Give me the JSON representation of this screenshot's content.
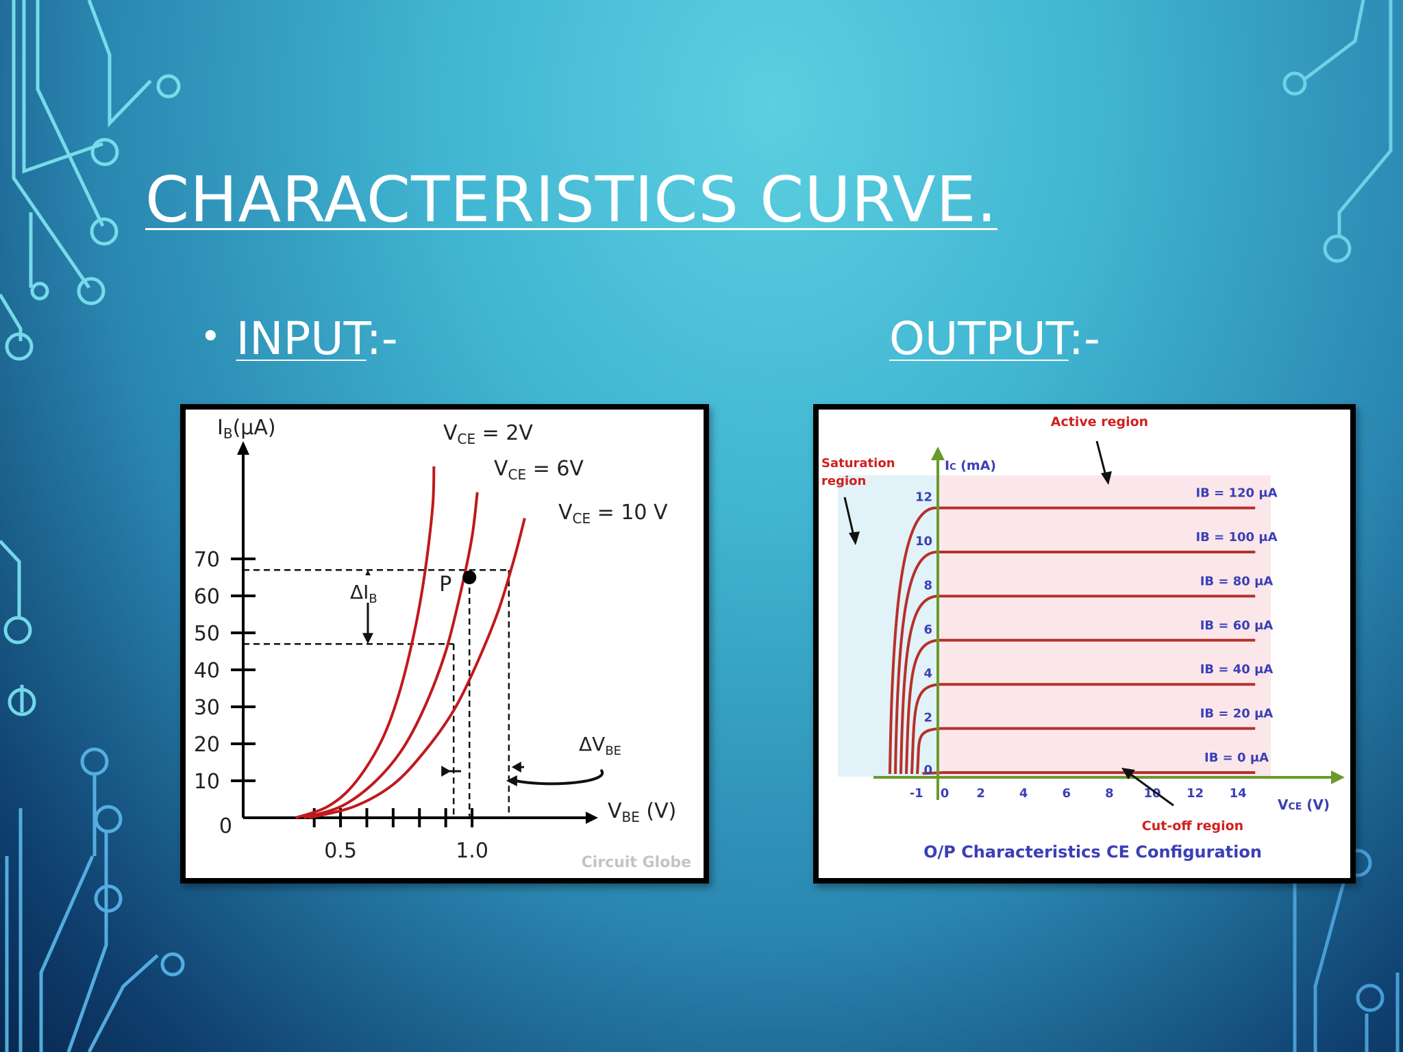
{
  "slide": {
    "title": "CHARACTERISTICS CURVE.",
    "input_heading": "INPUT",
    "output_heading": "OUTPUT",
    "heading_suffix": ":-",
    "bullet": "•"
  },
  "colors": {
    "curve": "#c0191d",
    "output_curve": "#b8302a",
    "output_axis": "#6a9a2e",
    "output_labels": "#3b3fb6",
    "region_labels": "#d0201f"
  },
  "chart_data": [
    {
      "type": "line",
      "ylabel": "IB(μA)",
      "xlabel": "VBE (V)",
      "xlim": [
        0.05,
        1.25
      ],
      "ylim": [
        0,
        80
      ],
      "x_ticks": [
        {
          "value": 0.5,
          "label": "0.5"
        },
        {
          "value": 1.0,
          "label": "1.0"
        }
      ],
      "y_ticks": [
        {
          "value": 10,
          "label": "10"
        },
        {
          "value": 20,
          "label": "20"
        },
        {
          "value": 30,
          "label": "30"
        },
        {
          "value": 40,
          "label": "40"
        },
        {
          "value": 50,
          "label": "50"
        },
        {
          "value": 60,
          "label": "60"
        },
        {
          "value": 70,
          "label": "70"
        }
      ],
      "origin_label": "0",
      "series": [
        {
          "name": "VCE = 2V",
          "x": [
            0.33,
            0.45,
            0.55,
            0.65,
            0.72,
            0.78,
            0.82,
            0.85,
            0.855
          ],
          "y": [
            0,
            3,
            9,
            20,
            33,
            50,
            66,
            84,
            95
          ]
        },
        {
          "name": "VCE = 6V",
          "x": [
            0.36,
            0.5,
            0.62,
            0.73,
            0.82,
            0.9,
            0.96,
            1.0,
            1.02
          ],
          "y": [
            0,
            3,
            9,
            18,
            30,
            45,
            62,
            76,
            88
          ]
        },
        {
          "name": "VCE = 10 V",
          "x": [
            0.38,
            0.55,
            0.7,
            0.82,
            0.93,
            1.02,
            1.1,
            1.16,
            1.2
          ],
          "y": [
            0,
            3,
            9,
            18,
            29,
            42,
            56,
            70,
            81
          ]
        }
      ],
      "series_labels": [
        {
          "sub": "CE",
          "rest": " = 2V"
        },
        {
          "sub": "CE",
          "rest": " = 6V"
        },
        {
          "sub": "CE",
          "rest": " = 10 V"
        }
      ],
      "annotations": {
        "point_label": "P",
        "point": {
          "x": 0.99,
          "y": 65
        },
        "delta_ib": "ΔIB",
        "delta_ib_range": [
          47,
          67
        ],
        "delta_vbe": "ΔVBE",
        "delta_vbe_range": [
          0.93,
          1.14
        ],
        "watermark": "Circuit Globe"
      },
      "grid": false
    },
    {
      "type": "line",
      "title": "O/P Characteristics CE Configuration",
      "ylabel": "IC (mA)",
      "xlabel": "VCE (V)",
      "xlim": [
        -1.5,
        15.5
      ],
      "ylim": [
        -0.3,
        14
      ],
      "x_ticks": [
        {
          "value": -1,
          "label": "-1"
        },
        {
          "value": 0,
          "label": "0"
        },
        {
          "value": 2,
          "label": "2"
        },
        {
          "value": 4,
          "label": "4"
        },
        {
          "value": 6,
          "label": "6"
        },
        {
          "value": 8,
          "label": "8"
        },
        {
          "value": 10,
          "label": "10"
        },
        {
          "value": 12,
          "label": "12"
        },
        {
          "value": 14,
          "label": "14"
        }
      ],
      "y_ticks": [
        {
          "value": 0,
          "label": "0"
        },
        {
          "value": 2,
          "label": "2"
        },
        {
          "value": 4,
          "label": "4"
        },
        {
          "value": 6,
          "label": "6"
        },
        {
          "value": 8,
          "label": "8"
        },
        {
          "value": 10,
          "label": "10"
        },
        {
          "value": 12,
          "label": "12"
        }
      ],
      "series": [
        {
          "name": "IB = 120 μA",
          "plateau": 12
        },
        {
          "name": "IB = 100 μA",
          "plateau": 10
        },
        {
          "name": "IB = 80 μA",
          "plateau": 8
        },
        {
          "name": "IB = 60 μA",
          "plateau": 6
        },
        {
          "name": "IB = 40 μA",
          "plateau": 4
        },
        {
          "name": "IB = 20 μA",
          "plateau": 2
        },
        {
          "name": "IB = 0 μA",
          "plateau": 0
        }
      ],
      "regions": {
        "saturation_label": [
          "Saturation",
          "region"
        ],
        "active_label": "Active region",
        "cutoff_label": "Cut-off region"
      },
      "grid": false
    }
  ]
}
